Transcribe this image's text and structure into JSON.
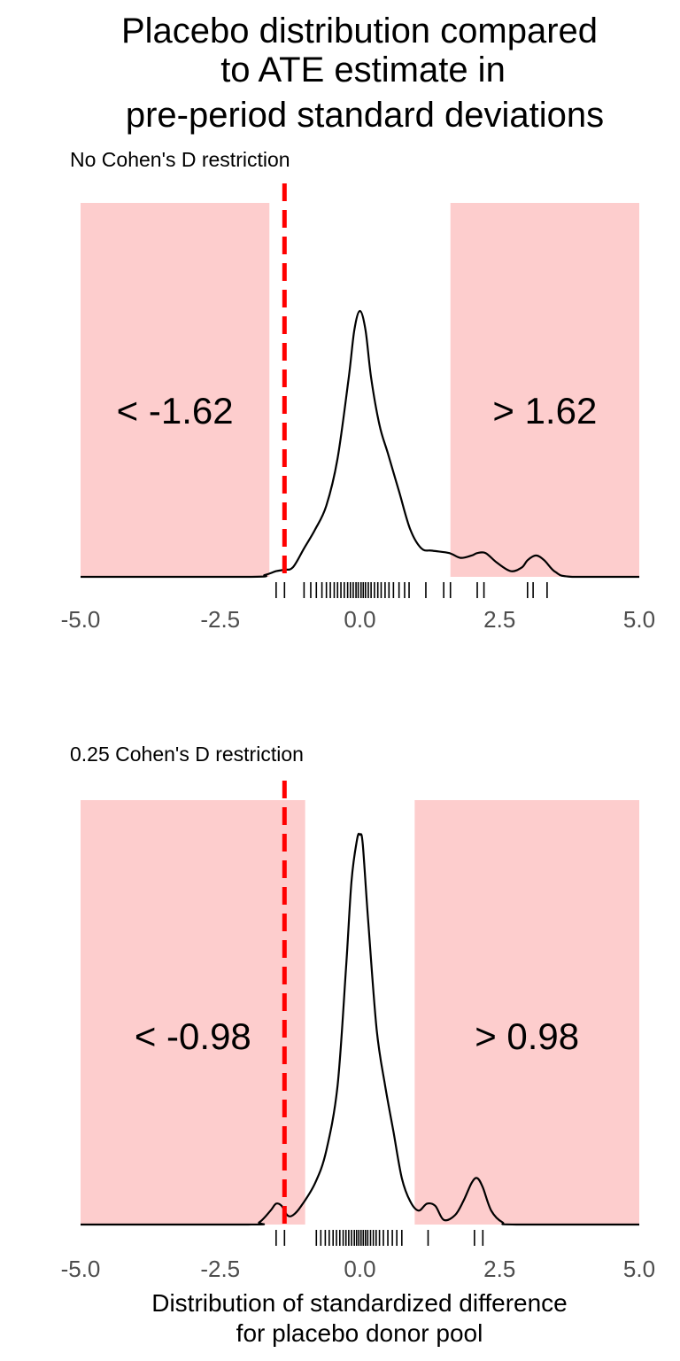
{
  "title_lines": [
    "Placebo distribution compared",
    "to ATE estimate in",
    "pre-period standard deviations"
  ],
  "xlabel_lines": [
    "Distribution of standardized difference",
    "for placebo donor pool"
  ],
  "colors": {
    "band": "#fdcdcd",
    "ate_line": "#ff0000",
    "density": "#000000",
    "tick_text": "#4d4d4d"
  },
  "chart_data": [
    {
      "type": "area",
      "subtitle": "No Cohen's D restriction",
      "xlim": [
        -5,
        5
      ],
      "x_ticks": [
        -5.0,
        -2.5,
        0.0,
        2.5,
        5.0
      ],
      "x_tick_labels": [
        "-5.0",
        "-2.5",
        "0.0",
        "2.5",
        "5.0"
      ],
      "threshold": 1.62,
      "ate_estimate": -1.35,
      "band_labels": [
        "< -1.62",
        "> 1.62"
      ],
      "density": {
        "x": [
          -5.0,
          -2.0,
          -1.7,
          -1.5,
          -1.35,
          -1.2,
          -1.0,
          -0.8,
          -0.6,
          -0.4,
          -0.2,
          -0.1,
          0.0,
          0.1,
          0.2,
          0.35,
          0.5,
          0.7,
          0.9,
          1.1,
          1.3,
          1.6,
          1.8,
          2.0,
          2.1,
          2.25,
          2.45,
          2.7,
          2.9,
          3.0,
          3.15,
          3.3,
          3.5,
          3.8,
          5.0
        ],
        "y": [
          0.0,
          0.0,
          0.004,
          0.012,
          0.015,
          0.02,
          0.06,
          0.1,
          0.15,
          0.25,
          0.42,
          0.52,
          0.56,
          0.52,
          0.42,
          0.32,
          0.26,
          0.18,
          0.1,
          0.06,
          0.055,
          0.05,
          0.04,
          0.045,
          0.05,
          0.05,
          0.03,
          0.012,
          0.02,
          0.035,
          0.045,
          0.035,
          0.01,
          0.0,
          0.0
        ]
      },
      "rug": [
        -1.5,
        -1.35,
        -1.0,
        -0.88,
        -0.78,
        -0.68,
        -0.6,
        -0.53,
        -0.46,
        -0.4,
        -0.34,
        -0.28,
        -0.22,
        -0.17,
        -0.12,
        -0.07,
        -0.03,
        0.02,
        0.06,
        0.1,
        0.15,
        0.2,
        0.26,
        0.32,
        0.38,
        0.45,
        0.52,
        0.6,
        0.7,
        0.8,
        0.88,
        1.18,
        1.5,
        1.62,
        2.1,
        2.22,
        3.0,
        3.1,
        3.35
      ]
    },
    {
      "type": "area",
      "subtitle": "0.25 Cohen's D restriction",
      "xlim": [
        -5,
        5
      ],
      "x_ticks": [
        -5.0,
        -2.5,
        0.0,
        2.5,
        5.0
      ],
      "x_tick_labels": [
        "-5.0",
        "-2.5",
        "0.0",
        "2.5",
        "5.0"
      ],
      "threshold": 0.98,
      "ate_estimate": -1.35,
      "band_labels": [
        "< -0.98",
        "> 0.98"
      ],
      "density": {
        "x": [
          -5.0,
          -2.0,
          -1.8,
          -1.6,
          -1.5,
          -1.4,
          -1.3,
          -1.2,
          -1.05,
          -0.8,
          -0.6,
          -0.4,
          -0.25,
          -0.15,
          -0.05,
          0.0,
          0.05,
          0.15,
          0.3,
          0.45,
          0.6,
          0.75,
          0.9,
          1.05,
          1.2,
          1.35,
          1.5,
          1.7,
          1.85,
          2.0,
          2.1,
          2.2,
          2.35,
          2.55,
          2.8,
          5.0
        ],
        "y": [
          0.0,
          0.0,
          0.005,
          0.03,
          0.045,
          0.04,
          0.02,
          0.02,
          0.04,
          0.09,
          0.16,
          0.3,
          0.55,
          0.74,
          0.83,
          0.84,
          0.82,
          0.65,
          0.42,
          0.3,
          0.2,
          0.1,
          0.05,
          0.03,
          0.045,
          0.04,
          0.01,
          0.02,
          0.05,
          0.09,
          0.1,
          0.08,
          0.03,
          0.005,
          0.0,
          0.0
        ]
      },
      "rug": [
        -1.5,
        -1.35,
        -0.78,
        -0.7,
        -0.62,
        -0.55,
        -0.48,
        -0.42,
        -0.36,
        -0.3,
        -0.25,
        -0.2,
        -0.15,
        -0.1,
        -0.06,
        -0.02,
        0.02,
        0.06,
        0.1,
        0.14,
        0.19,
        0.24,
        0.29,
        0.35,
        0.42,
        0.5,
        0.58,
        0.66,
        0.75,
        1.22,
        2.05,
        2.2
      ]
    }
  ]
}
